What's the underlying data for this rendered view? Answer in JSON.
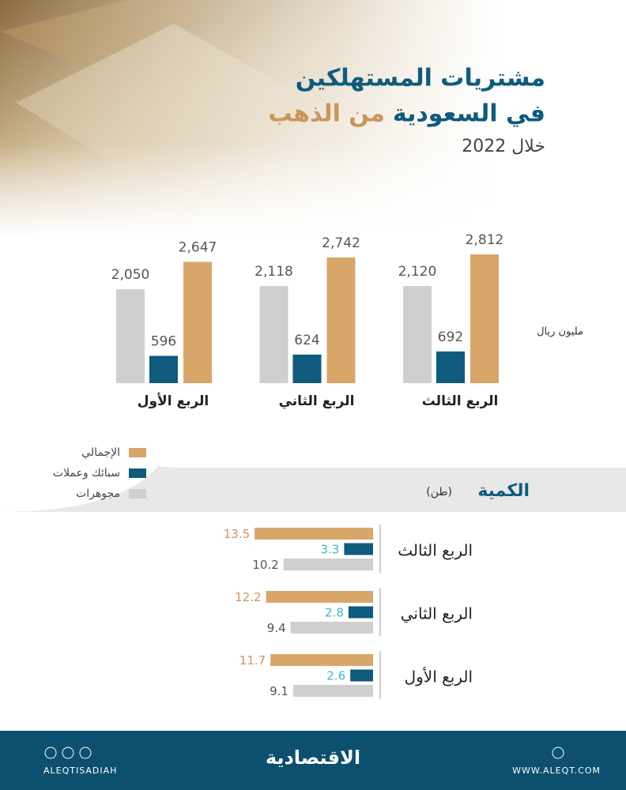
{
  "header": {
    "title": "مشتريات المستهلكين",
    "title_line2_a": "في السعودية",
    "title_line2_b": "من الذهب",
    "subtitle": "خلال 2022"
  },
  "chart_data": [
    {
      "type": "bar",
      "unit": "مليون ريال",
      "categories": [
        "الربع الثالث",
        "الربع الثاني",
        "الربع الأول"
      ],
      "series": [
        {
          "name": "الإجمالي",
          "color": "#d9a66a",
          "values": [
            2812,
            2742,
            2647
          ],
          "value_labels": [
            "2,812",
            "2,742",
            "2,647"
          ]
        },
        {
          "name": "سبائك وعملات",
          "color": "#0e5b7e",
          "values": [
            692,
            624,
            596
          ]
        },
        {
          "name": "مجوهرات",
          "color": "#cfcfcf",
          "values": [
            2120,
            2118,
            2050
          ],
          "value_labels": [
            "2,120",
            "2,118",
            "2,050"
          ]
        }
      ]
    },
    {
      "type": "hbar",
      "title": "الكمية",
      "unit": "(طن)",
      "categories": [
        "الربع الثالث",
        "الربع الثاني",
        "الربع الأول"
      ],
      "series": [
        {
          "name": "الإجمالي",
          "color": "#d9a66a",
          "label_color": "#c9965a",
          "values": [
            13.5,
            12.2,
            11.7
          ]
        },
        {
          "name": "سبائك وعملات",
          "color": "#0e5b7e",
          "label_color": "#3fb8c4",
          "values": [
            3.3,
            2.8,
            2.6
          ]
        },
        {
          "name": "مجوهرات",
          "color": "#cfcfcf",
          "label_color": "#555555",
          "values": [
            10.2,
            9.4,
            9.1
          ]
        }
      ]
    }
  ],
  "footer": {
    "brand": "الاقتصادية",
    "handle": "ALEQTISADIAH",
    "site": "WWW.ALEQT.COM"
  }
}
